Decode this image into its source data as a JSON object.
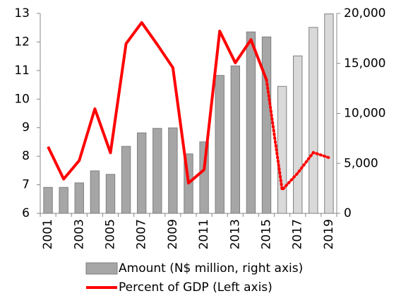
{
  "chart_data": {
    "type": "bar_line",
    "categories": [
      "2001",
      null,
      "2003",
      null,
      "2005",
      null,
      "2007",
      null,
      "2009",
      null,
      "2011",
      null,
      "2013",
      null,
      "2015",
      null,
      "2017",
      null,
      "2019"
    ],
    "series": [
      {
        "name": "Amount (N$ million, right axis)",
        "type": "bar",
        "axis": "y2",
        "color": "#a6a6a6",
        "projected_color": "#d9d9d9",
        "values": [
          2600,
          2600,
          3050,
          4250,
          3900,
          6700,
          8050,
          8500,
          8550,
          5950,
          7150,
          13800,
          14750,
          18150,
          17650,
          12700,
          15750,
          18600,
          19950
        ]
      },
      {
        "name": "Percent of GDP (Left axis)",
        "type": "line",
        "axis": "y",
        "color": "#ff0000",
        "values": [
          8.33,
          7.2,
          7.85,
          9.66,
          8.12,
          11.94,
          12.68,
          11.91,
          11.1,
          7.06,
          7.53,
          12.38,
          11.27,
          12.08,
          10.67,
          6.82,
          7.41,
          8.13,
          7.95
        ]
      }
    ],
    "projected_count": 4,
    "ylim": [
      6,
      13
    ],
    "yticks": [
      6,
      7,
      8,
      9,
      10,
      11,
      12,
      13
    ],
    "y2lim": [
      0,
      20000
    ],
    "y2ticks": [
      0,
      {
        "value": 5000,
        "label": "5,000"
      },
      {
        "value": 10000,
        "label": "10,000"
      },
      {
        "value": 15000,
        "label": "15,000"
      },
      {
        "value": 20000,
        "label": "20,000"
      }
    ],
    "grid": false
  }
}
